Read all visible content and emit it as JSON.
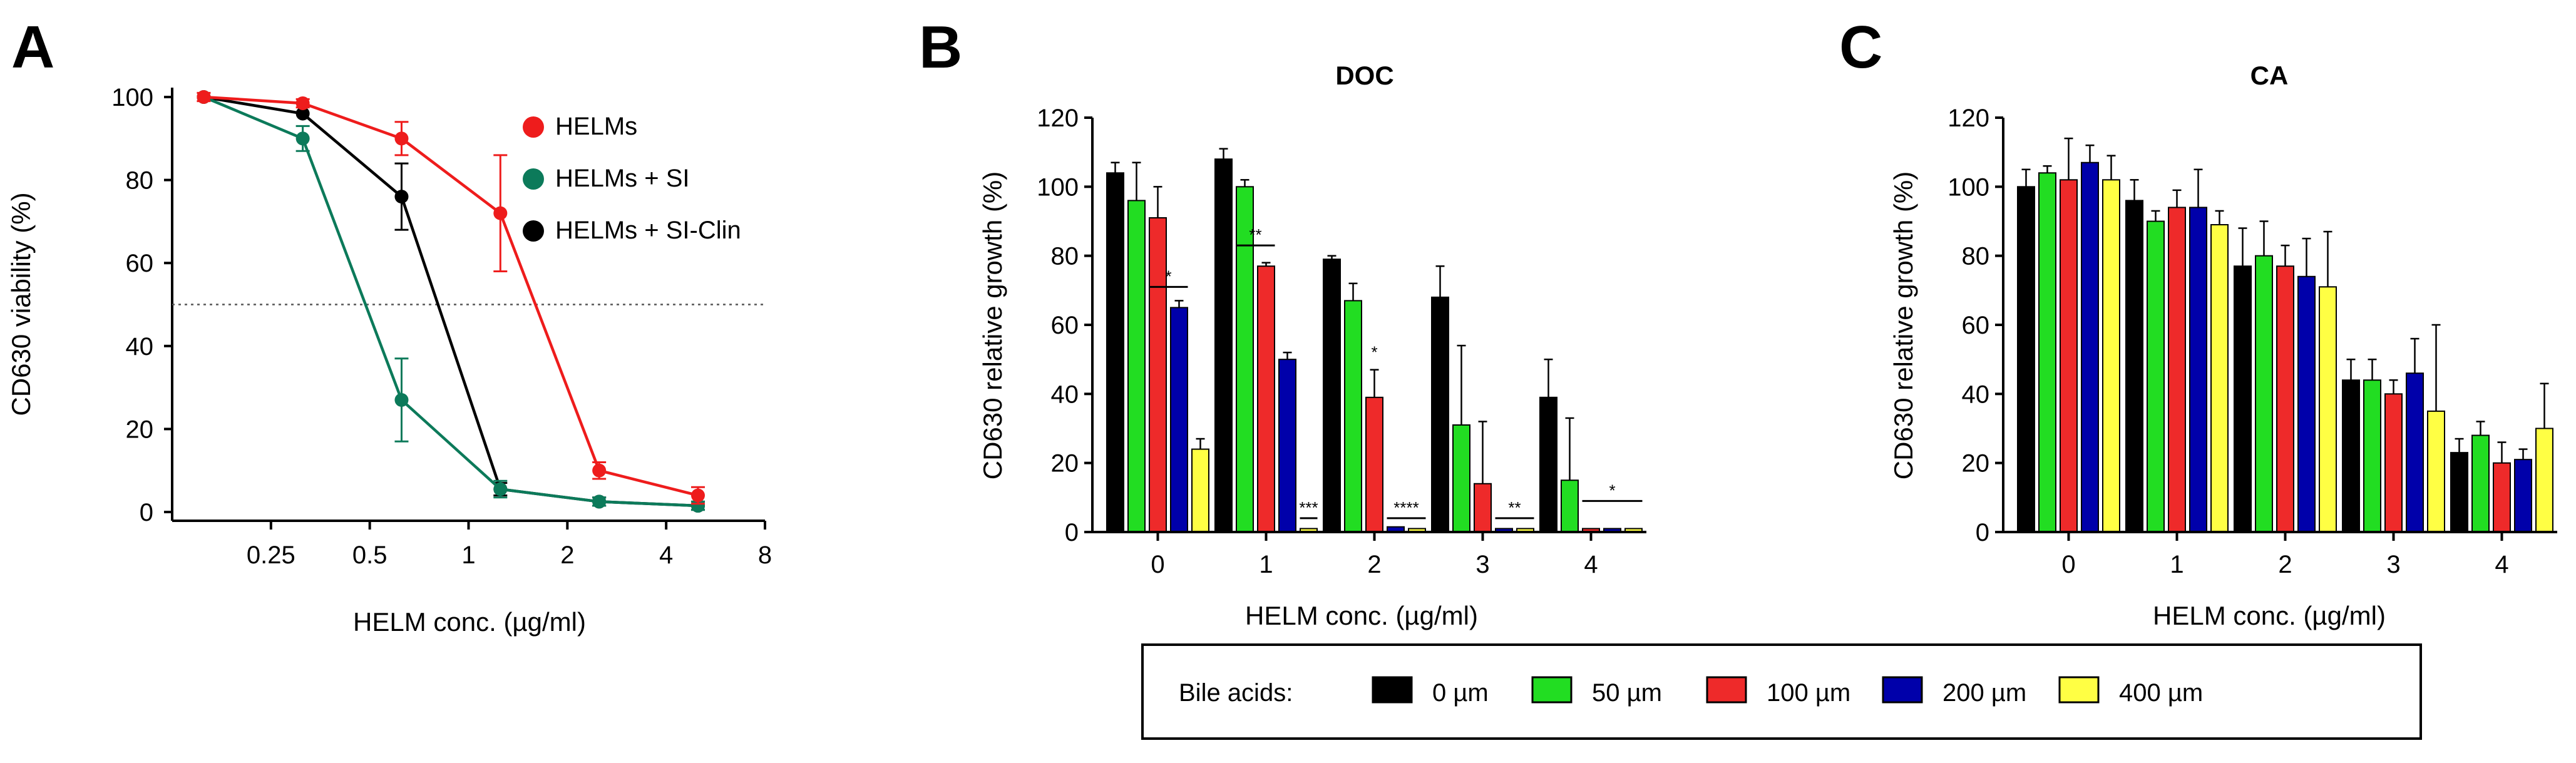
{
  "chart_data": [
    {
      "panel_label": "A",
      "type": "line",
      "title": "",
      "xlabel": "HELM conc. (µg/ml)",
      "ylabel": "CD630 viability (%)",
      "xscale": "log2",
      "xlim": [
        0.125,
        8
      ],
      "ylim": [
        0,
        100
      ],
      "xtick_labels": [
        "0.25",
        "0.5",
        "1",
        "2",
        "4",
        "8"
      ],
      "xtick_values": [
        0.25,
        0.5,
        1,
        2,
        4,
        8
      ],
      "ytick_labels": [
        "0",
        "20",
        "40",
        "60",
        "80",
        "100"
      ],
      "ytick_values": [
        0,
        20,
        40,
        60,
        80,
        100
      ],
      "reference_line_y": 50,
      "x": [
        0.156,
        0.3125,
        0.625,
        1.25,
        2.5,
        5
      ],
      "series": [
        {
          "name": "HELMs",
          "color": "#ee1c1c",
          "values": [
            100,
            98.5,
            90,
            72,
            10,
            4
          ],
          "errors": [
            1,
            1,
            4,
            14,
            2,
            2
          ]
        },
        {
          "name": "HELMs + SI",
          "color": "#0c7a5a",
          "values": [
            100,
            90,
            27,
            5.5,
            2.5,
            1.5
          ],
          "errors": [
            0,
            3,
            10,
            2,
            1,
            1
          ]
        },
        {
          "name": "HELMs + SI-Clin",
          "color": "#000000",
          "values": [
            100,
            96,
            76,
            5.5,
            2.5,
            1.5
          ],
          "errors": [
            0,
            0,
            8,
            1.5,
            1,
            1
          ]
        }
      ],
      "legend_position": "top-right"
    },
    {
      "panel_label": "B",
      "type": "bar",
      "title": "DOC",
      "xlabel": "HELM conc. (µg/ml)",
      "ylabel": "CD630 relative growth (%)",
      "ylim": [
        0,
        120
      ],
      "ytick_labels": [
        "0",
        "20",
        "40",
        "60",
        "80",
        "100",
        "120"
      ],
      "ytick_values": [
        0,
        20,
        40,
        60,
        80,
        100,
        120
      ],
      "categories": [
        "0",
        "1",
        "2",
        "3",
        "4"
      ],
      "series": [
        {
          "name": "0 µm",
          "color": "#000000",
          "values": [
            104,
            108,
            79,
            68,
            39
          ],
          "errors": [
            3,
            3,
            1,
            9,
            11
          ]
        },
        {
          "name": "50 µm",
          "color": "#22dd22",
          "values": [
            96,
            100,
            67,
            31,
            15
          ],
          "errors": [
            11,
            2,
            5,
            23,
            18
          ]
        },
        {
          "name": "100 µm",
          "color": "#ee2a2a",
          "values": [
            91,
            77,
            39,
            14,
            1
          ],
          "errors": [
            9,
            1,
            8,
            18,
            0
          ]
        },
        {
          "name": "200 µm",
          "color": "#0000aa",
          "values": [
            65,
            50,
            1.5,
            1,
            1
          ],
          "errors": [
            2,
            2,
            0,
            0,
            0
          ]
        },
        {
          "name": "400 µm",
          "color": "#ffff44",
          "values": [
            24,
            1,
            1,
            1,
            1
          ],
          "errors": [
            3,
            0,
            0,
            0,
            0
          ]
        }
      ],
      "annotations": [
        "*",
        "**",
        "*",
        "***",
        "****",
        "**",
        "*"
      ]
    },
    {
      "panel_label": "C",
      "type": "bar",
      "title": "CA",
      "xlabel": "HELM conc. (µg/ml)",
      "ylabel": "CD630 relative growth (%)",
      "ylim": [
        0,
        120
      ],
      "ytick_labels": [
        "0",
        "20",
        "40",
        "60",
        "80",
        "100",
        "120"
      ],
      "ytick_values": [
        0,
        20,
        40,
        60,
        80,
        100,
        120
      ],
      "categories": [
        "0",
        "1",
        "2",
        "3",
        "4"
      ],
      "series": [
        {
          "name": "0 µm",
          "color": "#000000",
          "values": [
            100,
            96,
            77,
            44,
            23
          ],
          "errors": [
            5,
            6,
            11,
            6,
            4
          ]
        },
        {
          "name": "50 µm",
          "color": "#22dd22",
          "values": [
            104,
            90,
            80,
            44,
            28
          ],
          "errors": [
            2,
            3,
            10,
            6,
            4
          ]
        },
        {
          "name": "100 µm",
          "color": "#ee2a2a",
          "values": [
            102,
            94,
            77,
            40,
            20
          ],
          "errors": [
            12,
            5,
            6,
            4,
            6
          ]
        },
        {
          "name": "200 µm",
          "color": "#0000aa",
          "values": [
            107,
            94,
            74,
            46,
            21
          ],
          "errors": [
            5,
            11,
            11,
            10,
            3
          ]
        },
        {
          "name": "400 µm",
          "color": "#ffff44",
          "values": [
            102,
            89,
            71,
            35,
            30
          ],
          "errors": [
            7,
            4,
            16,
            25,
            13
          ]
        }
      ]
    }
  ],
  "legend": {
    "title": "Bile acids:",
    "items": [
      {
        "label": "0 µm",
        "color": "#000000"
      },
      {
        "label": "50 µm",
        "color": "#22dd22"
      },
      {
        "label": "100 µm",
        "color": "#ee2a2a"
      },
      {
        "label": "200 µm",
        "color": "#0000aa"
      },
      {
        "label": "400 µm",
        "color": "#ffff44"
      }
    ]
  }
}
